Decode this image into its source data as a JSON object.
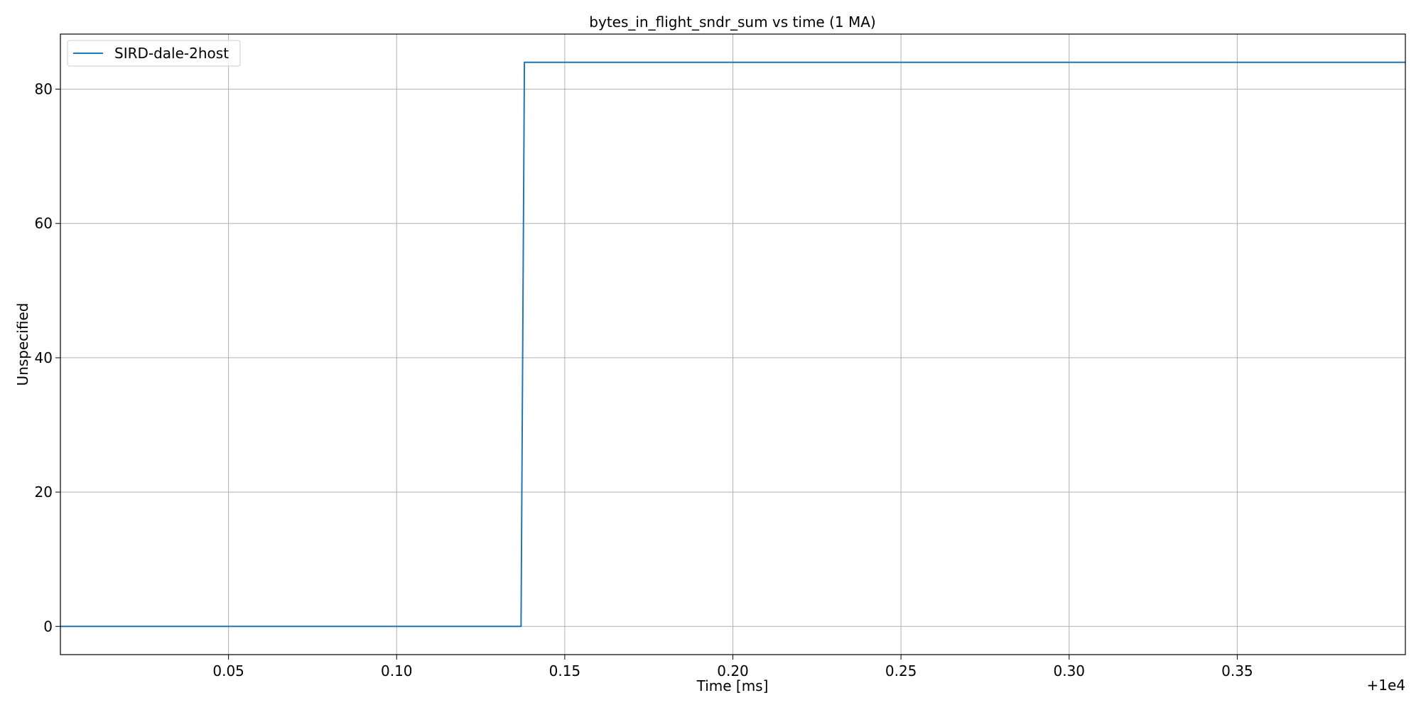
{
  "chart_data": {
    "type": "line",
    "title": "bytes_in_flight_sndr_sum vs time (1 MA)",
    "xlabel": "Time [ms]",
    "ylabel": "Unspecified",
    "x_offset_label": "+1e4",
    "xlim": [
      0.0,
      0.4
    ],
    "ylim": [
      -4.2,
      88.2
    ],
    "xticks": [
      0.05,
      0.1,
      0.15,
      0.2,
      0.25,
      0.3,
      0.35
    ],
    "xtick_labels": [
      "0.05",
      "0.10",
      "0.15",
      "0.20",
      "0.25",
      "0.30",
      "0.35"
    ],
    "yticks": [
      0,
      20,
      40,
      60,
      80
    ],
    "ytick_labels": [
      "0",
      "20",
      "40",
      "60",
      "80"
    ],
    "grid": true,
    "legend_position": "top-left",
    "series": [
      {
        "name": "SIRD-dale-2host",
        "color": "#1f77b4",
        "x": [
          0.0,
          0.137,
          0.138,
          0.4
        ],
        "y": [
          0,
          0,
          84,
          84
        ]
      }
    ]
  }
}
